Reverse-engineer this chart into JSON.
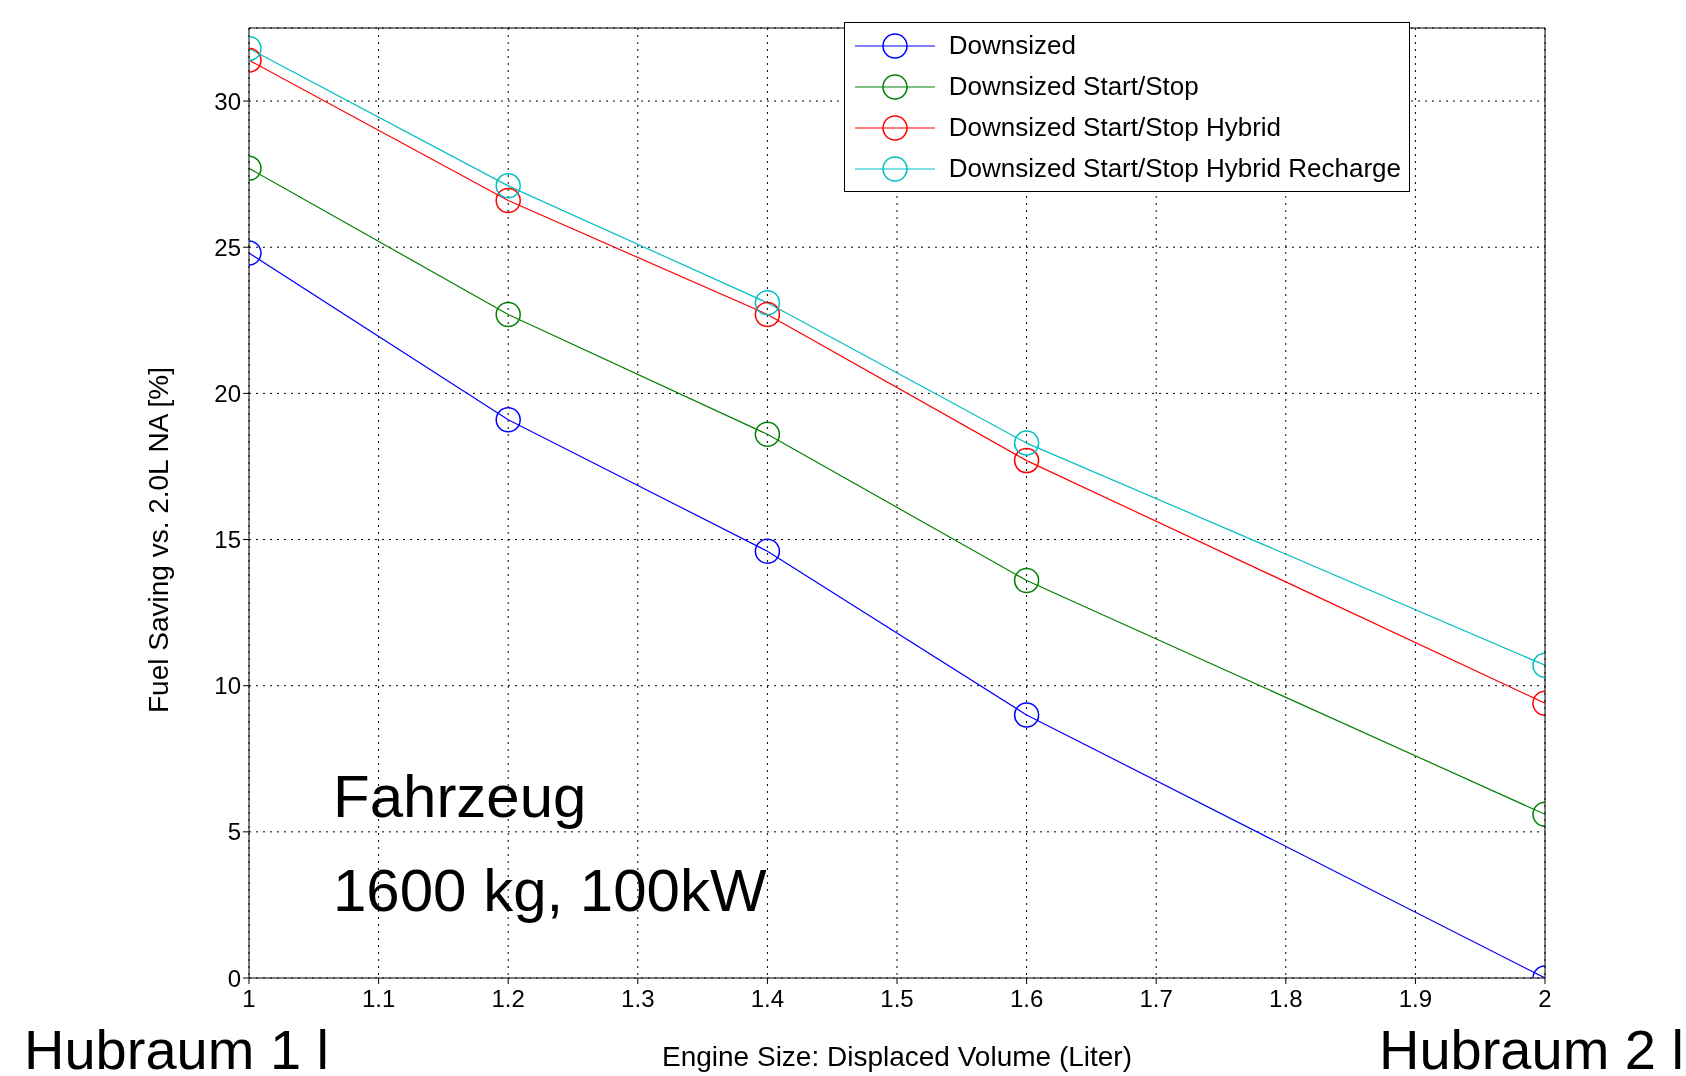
{
  "chart_data": {
    "type": "line",
    "xlabel": "Engine Size: Displaced Volume (Liter)",
    "ylabel": "Fuel Saving vs. 2.0L NA [%]",
    "x": [
      1,
      1.2,
      1.4,
      1.6,
      2
    ],
    "series": [
      {
        "name": "Downsized",
        "color": "#0000ff",
        "values": [
          24.8,
          19.1,
          14.6,
          9.0,
          0
        ]
      },
      {
        "name": "Downsized Start/Stop",
        "color": "#008000",
        "values": [
          27.7,
          22.7,
          18.6,
          13.6,
          5.6
        ]
      },
      {
        "name": "Downsized Start/Stop Hybrid",
        "color": "#ff0000",
        "values": [
          31.4,
          26.6,
          22.7,
          17.7,
          9.4
        ]
      },
      {
        "name": "Downsized Start/Stop Hybrid Recharge",
        "color": "#00bfbf",
        "values": [
          31.8,
          27.1,
          23.1,
          18.3,
          10.7
        ]
      }
    ],
    "xlim": [
      1,
      2
    ],
    "xticks": [
      1,
      1.1,
      1.2,
      1.3,
      1.4,
      1.5,
      1.6,
      1.7,
      1.8,
      1.9,
      2
    ],
    "ylim": [
      0,
      32.5
    ],
    "yticks": [
      0,
      5,
      10,
      15,
      20,
      25,
      30
    ],
    "grid": true,
    "legend": "top right",
    "marker": "circle",
    "line_style": "solid",
    "annotations": [
      "Fahrzeug",
      "1600 kg, 100kW",
      "Hubraum 1 l",
      "Hubraum 2 l"
    ]
  }
}
